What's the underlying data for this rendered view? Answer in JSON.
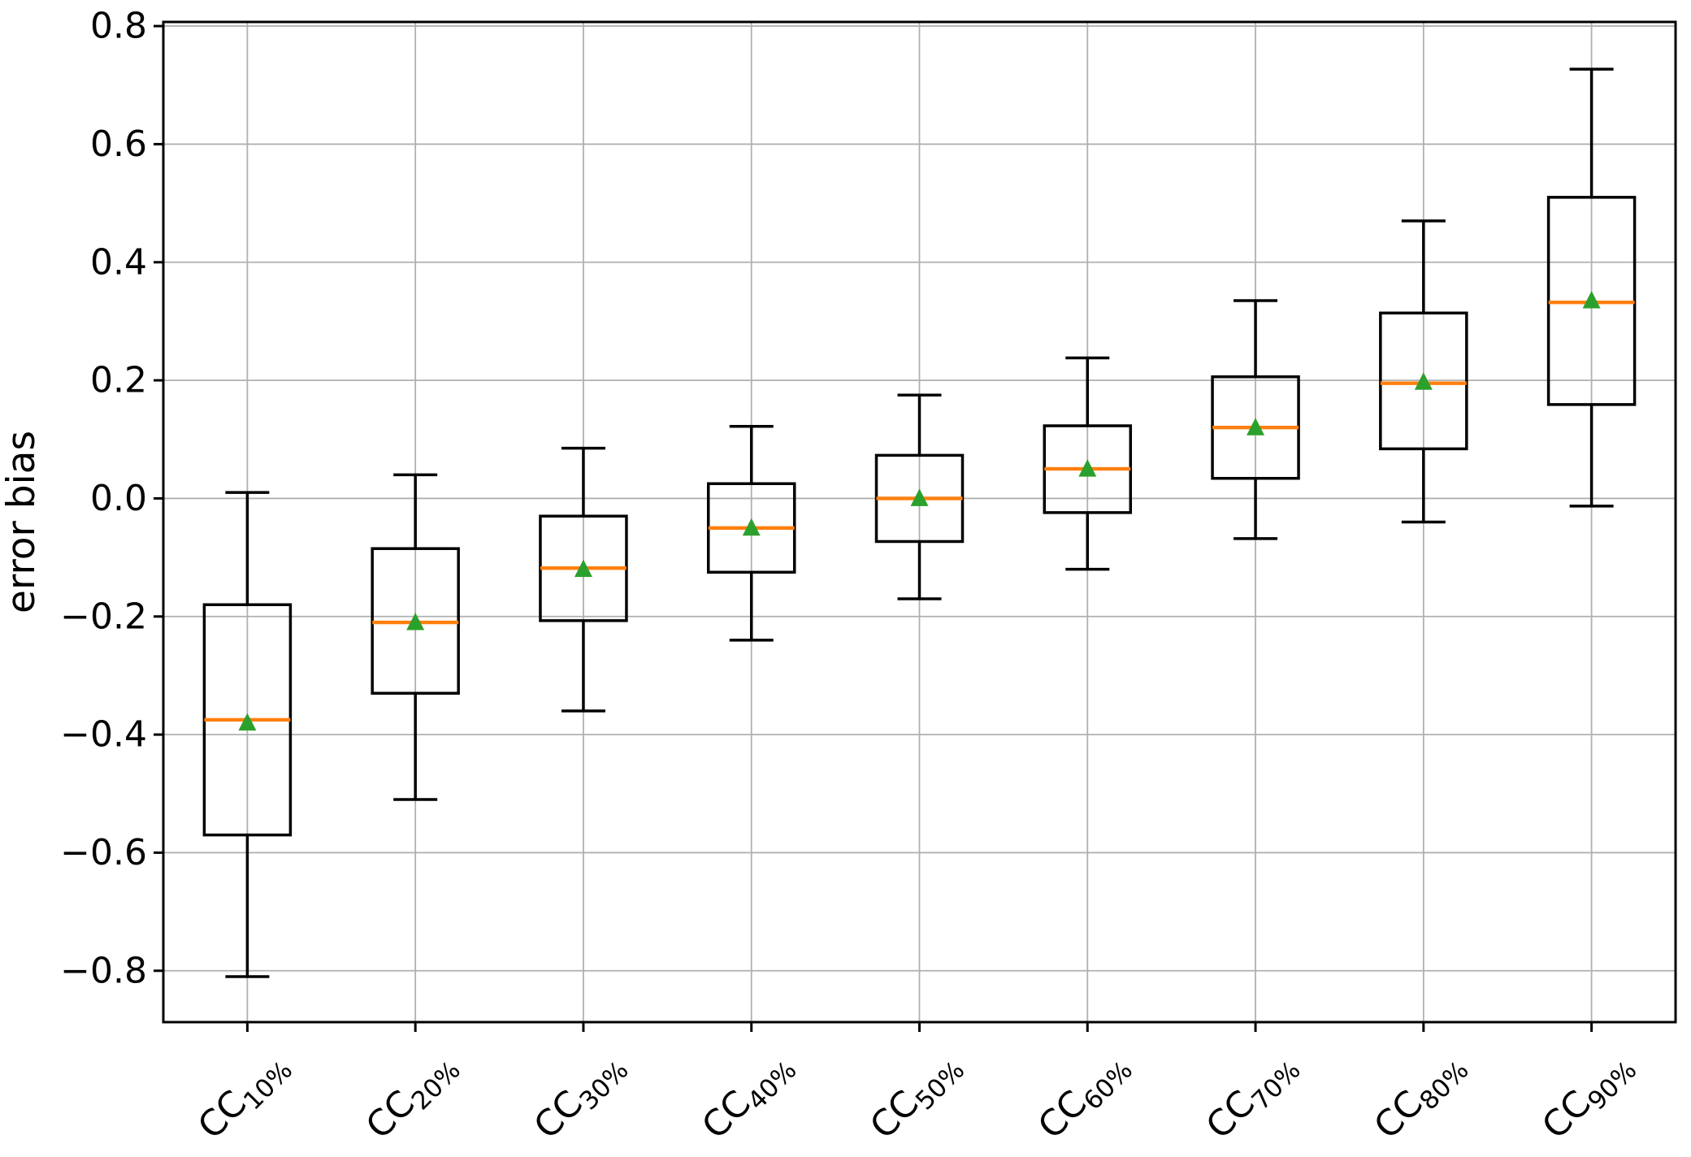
{
  "figure": {
    "background": "#ffffff"
  },
  "chart_data": {
    "type": "boxplot",
    "title": "",
    "xlabel": "",
    "ylabel": "error bias",
    "ylim": [
      -0.887,
      0.807
    ],
    "grid": true,
    "legend": "none",
    "colors": {
      "median": "#ff7f0e",
      "mean_marker": "#2ca02c",
      "box_edge": "#000000",
      "whisker": "#000000",
      "grid": "#b0b0b0",
      "spine": "#000000",
      "text": "#000000"
    },
    "y_ticks": [
      {
        "value": 0.8,
        "label": "0.8"
      },
      {
        "value": 0.6,
        "label": "0.6"
      },
      {
        "value": 0.4,
        "label": "0.4"
      },
      {
        "value": 0.2,
        "label": "0.2"
      },
      {
        "value": 0.0,
        "label": "0.0"
      },
      {
        "value": -0.2,
        "label": "−0.2"
      },
      {
        "value": -0.4,
        "label": "−0.4"
      },
      {
        "value": -0.6,
        "label": "−0.6"
      },
      {
        "value": -0.8,
        "label": "−0.8"
      }
    ],
    "categories": [
      {
        "base": "CC",
        "sub": "10%",
        "label": "CC10%"
      },
      {
        "base": "CC",
        "sub": "20%",
        "label": "CC20%"
      },
      {
        "base": "CC",
        "sub": "30%",
        "label": "CC30%"
      },
      {
        "base": "CC",
        "sub": "40%",
        "label": "CC40%"
      },
      {
        "base": "CC",
        "sub": "50%",
        "label": "CC50%"
      },
      {
        "base": "CC",
        "sub": "60%",
        "label": "CC60%"
      },
      {
        "base": "CC",
        "sub": "70%",
        "label": "CC70%"
      },
      {
        "base": "CC",
        "sub": "80%",
        "label": "CC80%"
      },
      {
        "base": "CC",
        "sub": "90%",
        "label": "CC90%"
      }
    ],
    "series": [
      {
        "label": "CC10%",
        "whislo": -0.81,
        "q1": -0.57,
        "med": -0.375,
        "mean": -0.38,
        "q3": -0.18,
        "whishi": 0.01
      },
      {
        "label": "CC20%",
        "whislo": -0.51,
        "q1": -0.33,
        "med": -0.21,
        "mean": -0.21,
        "q3": -0.085,
        "whishi": 0.04
      },
      {
        "label": "CC30%",
        "whislo": -0.36,
        "q1": -0.207,
        "med": -0.118,
        "mean": -0.12,
        "q3": -0.03,
        "whishi": 0.085
      },
      {
        "label": "CC40%",
        "whislo": -0.24,
        "q1": -0.125,
        "med": -0.05,
        "mean": -0.05,
        "q3": 0.025,
        "whishi": 0.122
      },
      {
        "label": "CC50%",
        "whislo": -0.17,
        "q1": -0.073,
        "med": 0.0,
        "mean": 0.0,
        "q3": 0.073,
        "whishi": 0.175
      },
      {
        "label": "CC60%",
        "whislo": -0.12,
        "q1": -0.024,
        "med": 0.05,
        "mean": 0.05,
        "q3": 0.123,
        "whishi": 0.238
      },
      {
        "label": "CC70%",
        "whislo": -0.068,
        "q1": 0.034,
        "med": 0.12,
        "mean": 0.12,
        "q3": 0.206,
        "whishi": 0.335
      },
      {
        "label": "CC80%",
        "whislo": -0.04,
        "q1": 0.084,
        "med": 0.195,
        "mean": 0.197,
        "q3": 0.314,
        "whishi": 0.47
      },
      {
        "label": "CC90%",
        "whislo": -0.013,
        "q1": 0.159,
        "med": 0.332,
        "mean": 0.335,
        "q3": 0.51,
        "whishi": 0.727
      }
    ]
  }
}
